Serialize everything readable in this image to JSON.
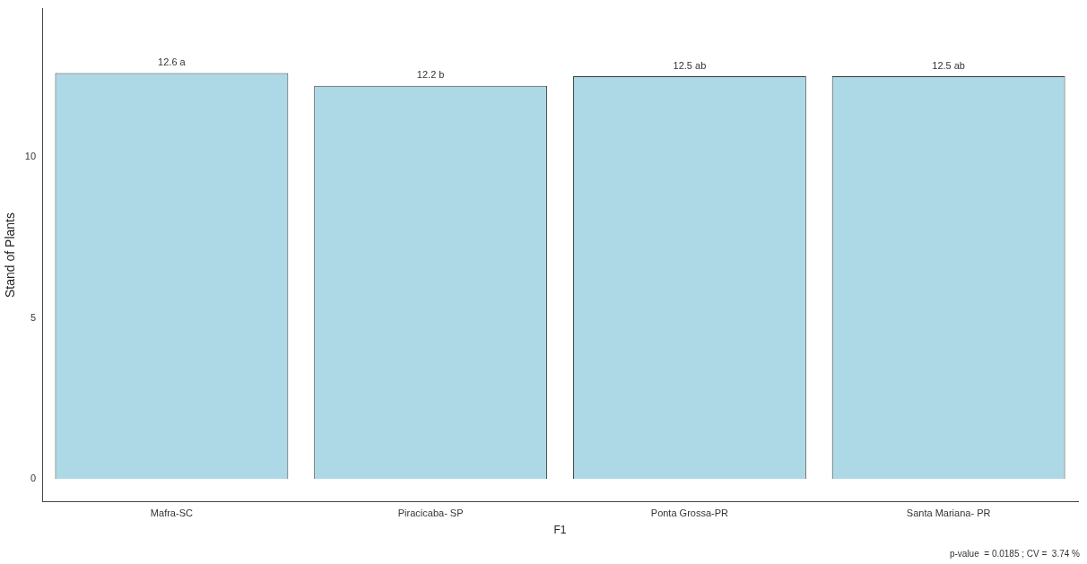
{
  "chart_data": {
    "type": "bar",
    "xlabel": "F1",
    "ylabel": "Stand of Plants",
    "categories": [
      "Mafra-SC",
      "Piracicaba- SP",
      "Ponta Grossa-PR",
      "Santa Mariana- PR"
    ],
    "values": [
      12.6,
      12.2,
      12.5,
      12.5
    ],
    "value_labels": [
      "12.6 a",
      "12.2 b",
      "12.5 ab",
      "12.5 ab"
    ],
    "color": "#add8e6",
    "ylim": [
      -0.7,
      14.6
    ],
    "yticks": [
      0,
      5,
      10
    ],
    "grid": false,
    "legend": false,
    "annotations": [
      "p-value  = 0.0185 ; CV =  3.74 %"
    ]
  }
}
